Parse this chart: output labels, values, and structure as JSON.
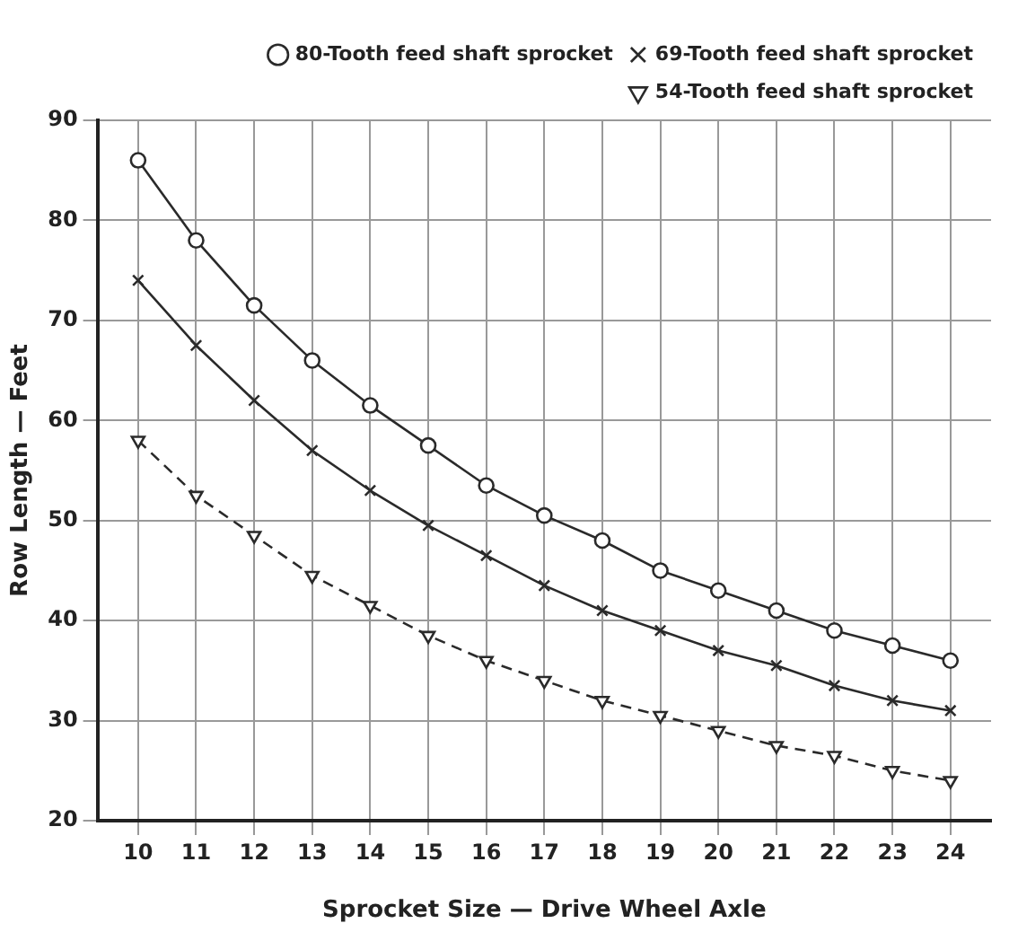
{
  "chart_data": {
    "type": "line",
    "xlabel": "Sprocket Size — Drive Wheel Axle",
    "ylabel": "Row Length — Feet",
    "x": [
      10,
      11,
      12,
      13,
      14,
      15,
      16,
      17,
      18,
      19,
      20,
      21,
      22,
      23,
      24
    ],
    "series": [
      {
        "name": "80-Tooth feed shaft sprocket",
        "color": "#2a2a2a",
        "marker": "circle",
        "line_style": "solid",
        "values": [
          86,
          78,
          71.5,
          66,
          61.5,
          57.5,
          53.5,
          50.5,
          48,
          45,
          43,
          41,
          39,
          37.5,
          36
        ]
      },
      {
        "name": "69-Tooth feed shaft sprocket",
        "color": "#2a2a2a",
        "marker": "cross",
        "line_style": "solid",
        "values": [
          74,
          67.5,
          62,
          57,
          53,
          49.5,
          46.5,
          43.5,
          41,
          39,
          37,
          35.5,
          33.5,
          32,
          31
        ]
      },
      {
        "name": "54-Tooth feed shaft sprocket",
        "color": "#2a2a2a",
        "marker": "triangle",
        "line_style": "dashed",
        "values": [
          58,
          52.5,
          48.5,
          44.5,
          41.5,
          38.5,
          36,
          34,
          32,
          30.5,
          29,
          27.5,
          26.5,
          25,
          24
        ]
      }
    ],
    "xlim": [
      9.3,
      24.7
    ],
    "xticks": [
      10,
      11,
      12,
      13,
      14,
      15,
      16,
      17,
      18,
      19,
      20,
      21,
      22,
      23,
      24
    ],
    "ylim": [
      20,
      90
    ],
    "yticks": [
      20,
      30,
      40,
      50,
      60,
      70,
      80,
      90
    ],
    "grid": true,
    "legend": "top right"
  }
}
